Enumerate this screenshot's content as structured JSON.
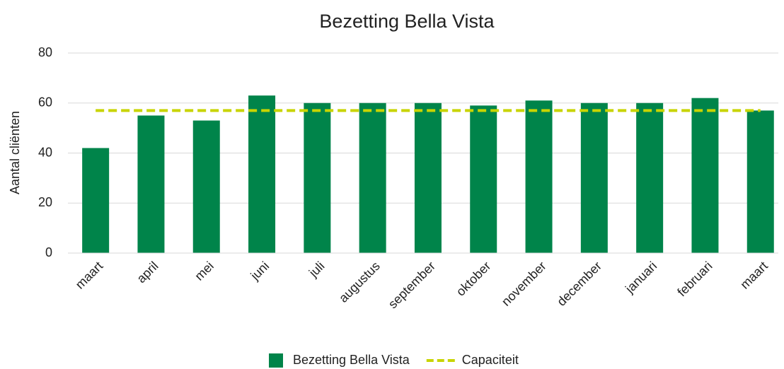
{
  "chart_data": {
    "type": "bar",
    "title": "Bezetting Bella Vista",
    "y_label": "Aantal cliënten",
    "categories": [
      "maart",
      "april",
      "mei",
      "juni",
      "juli",
      "augustus",
      "september",
      "oktober",
      "november",
      "december",
      "januari",
      "februari",
      "maart"
    ],
    "series": [
      {
        "name": "Bezetting Bella Vista",
        "color": "#00844a",
        "values": [
          42,
          55,
          53,
          63,
          60,
          60,
          60,
          59,
          61,
          60,
          60,
          62,
          57
        ]
      },
      {
        "name": "Capaciteit",
        "color": "#c8d400",
        "type": "line",
        "dashed": true,
        "values": [
          57,
          57,
          57,
          57,
          57,
          57,
          57,
          57,
          57,
          57,
          57,
          57,
          57
        ]
      }
    ],
    "ylim": [
      0,
      80
    ],
    "yticks": [
      0,
      20,
      40,
      60,
      80
    ],
    "grid": true,
    "legend": "bottom"
  }
}
